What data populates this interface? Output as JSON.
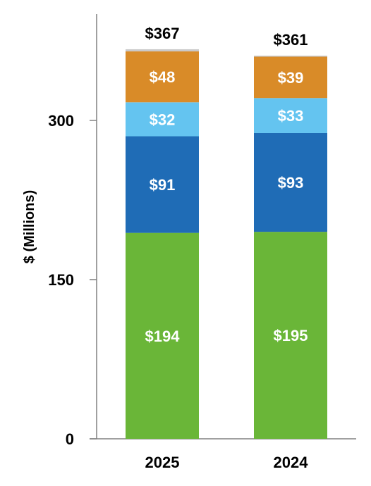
{
  "chart_data": {
    "type": "bar",
    "stacked": true,
    "categories": [
      "2025",
      "2024"
    ],
    "series": [
      {
        "values": [
          194,
          195
        ],
        "labels": [
          "$194",
          "$195"
        ],
        "color": "#6ab638"
      },
      {
        "values": [
          91,
          93
        ],
        "labels": [
          "$91",
          "$93"
        ],
        "color": "#1f6cb6"
      },
      {
        "values": [
          32,
          33
        ],
        "labels": [
          "$32",
          "$33"
        ],
        "color": "#64c4f0"
      },
      {
        "values": [
          48,
          39
        ],
        "labels": [
          "$48",
          "$39"
        ],
        "color": "#d98b28"
      },
      {
        "values": [
          2,
          1
        ],
        "labels": [
          "",
          ""
        ],
        "color": "#c9c9c9"
      }
    ],
    "totals": [
      "$367",
      "$361"
    ],
    "total_values": [
      367,
      361
    ],
    "ylabel": "$ (Millions)",
    "yticks": [
      0,
      150,
      300
    ],
    "ylim": [
      0,
      400
    ],
    "grid": false,
    "legend": "none"
  }
}
